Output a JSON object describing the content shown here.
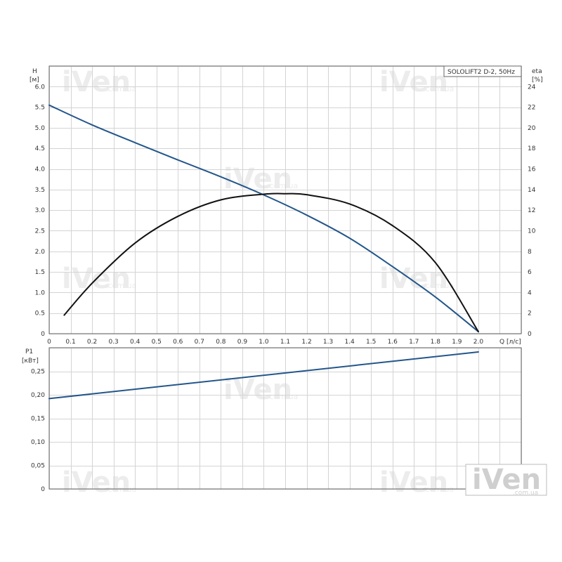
{
  "chart_data": [
    {
      "type": "line",
      "title": "SOLOLIFT2 D-2, 50Hz",
      "xlabel": "Q [л/с]",
      "ylabel": [
        "H",
        "[м]"
      ],
      "y2label": [
        "eta",
        "[%]"
      ],
      "xlim": [
        0,
        2.2
      ],
      "ylim": [
        0,
        6.5
      ],
      "y2lim": [
        0,
        26
      ],
      "grid": true,
      "x_ticks": [
        "0",
        "0.1",
        "0.2",
        "0.3",
        "0.4",
        "0.5",
        "0.6",
        "0.7",
        "0.8",
        "0.9",
        "1.0",
        "1.1",
        "1.2",
        "1.3",
        "1.4",
        "1.5",
        "1.6",
        "1.7",
        "1.8",
        "1.9",
        "2.0"
      ],
      "y_ticks": [
        "0",
        "0.5",
        "1.0",
        "1.5",
        "2.0",
        "2.5",
        "3.0",
        "3.5",
        "4.0",
        "4.5",
        "5.0",
        "5.5",
        "6.0"
      ],
      "y2_ticks": [
        "0",
        "2",
        "4",
        "6",
        "8",
        "10",
        "12",
        "14",
        "16",
        "18",
        "20",
        "22",
        "24"
      ],
      "series": [
        {
          "id": "head",
          "axis": "y",
          "color": "#23568a",
          "x": [
            0.0,
            0.2,
            0.4,
            0.6,
            0.8,
            1.0,
            1.2,
            1.4,
            1.6,
            1.8,
            2.0
          ],
          "y": [
            5.55,
            5.07,
            4.64,
            4.22,
            3.81,
            3.37,
            2.88,
            2.32,
            1.63,
            0.89,
            0.05
          ]
        },
        {
          "id": "eta",
          "axis": "y2",
          "color": "#111111",
          "x": [
            0.07,
            0.2,
            0.4,
            0.6,
            0.8,
            1.0,
            1.1,
            1.2,
            1.4,
            1.6,
            1.8,
            2.0
          ],
          "y": [
            1.8,
            4.9,
            8.8,
            11.4,
            13.0,
            13.55,
            13.6,
            13.5,
            12.6,
            10.5,
            6.9,
            0.2
          ]
        }
      ]
    },
    {
      "type": "line",
      "ylabel": [
        "P1",
        "[кВт]"
      ],
      "xlim": [
        0,
        2.2
      ],
      "ylim": [
        0,
        0.3
      ],
      "grid": true,
      "y_ticks": [
        "0",
        "0,05",
        "0,10",
        "0,15",
        "0,20",
        "0,25"
      ],
      "series": [
        {
          "id": "power",
          "axis": "y",
          "color": "#23568a",
          "x": [
            0.0,
            2.0
          ],
          "y": [
            0.192,
            0.291
          ]
        }
      ]
    }
  ],
  "watermark": {
    "brand": "iVen",
    "domain": ".com.ua"
  }
}
